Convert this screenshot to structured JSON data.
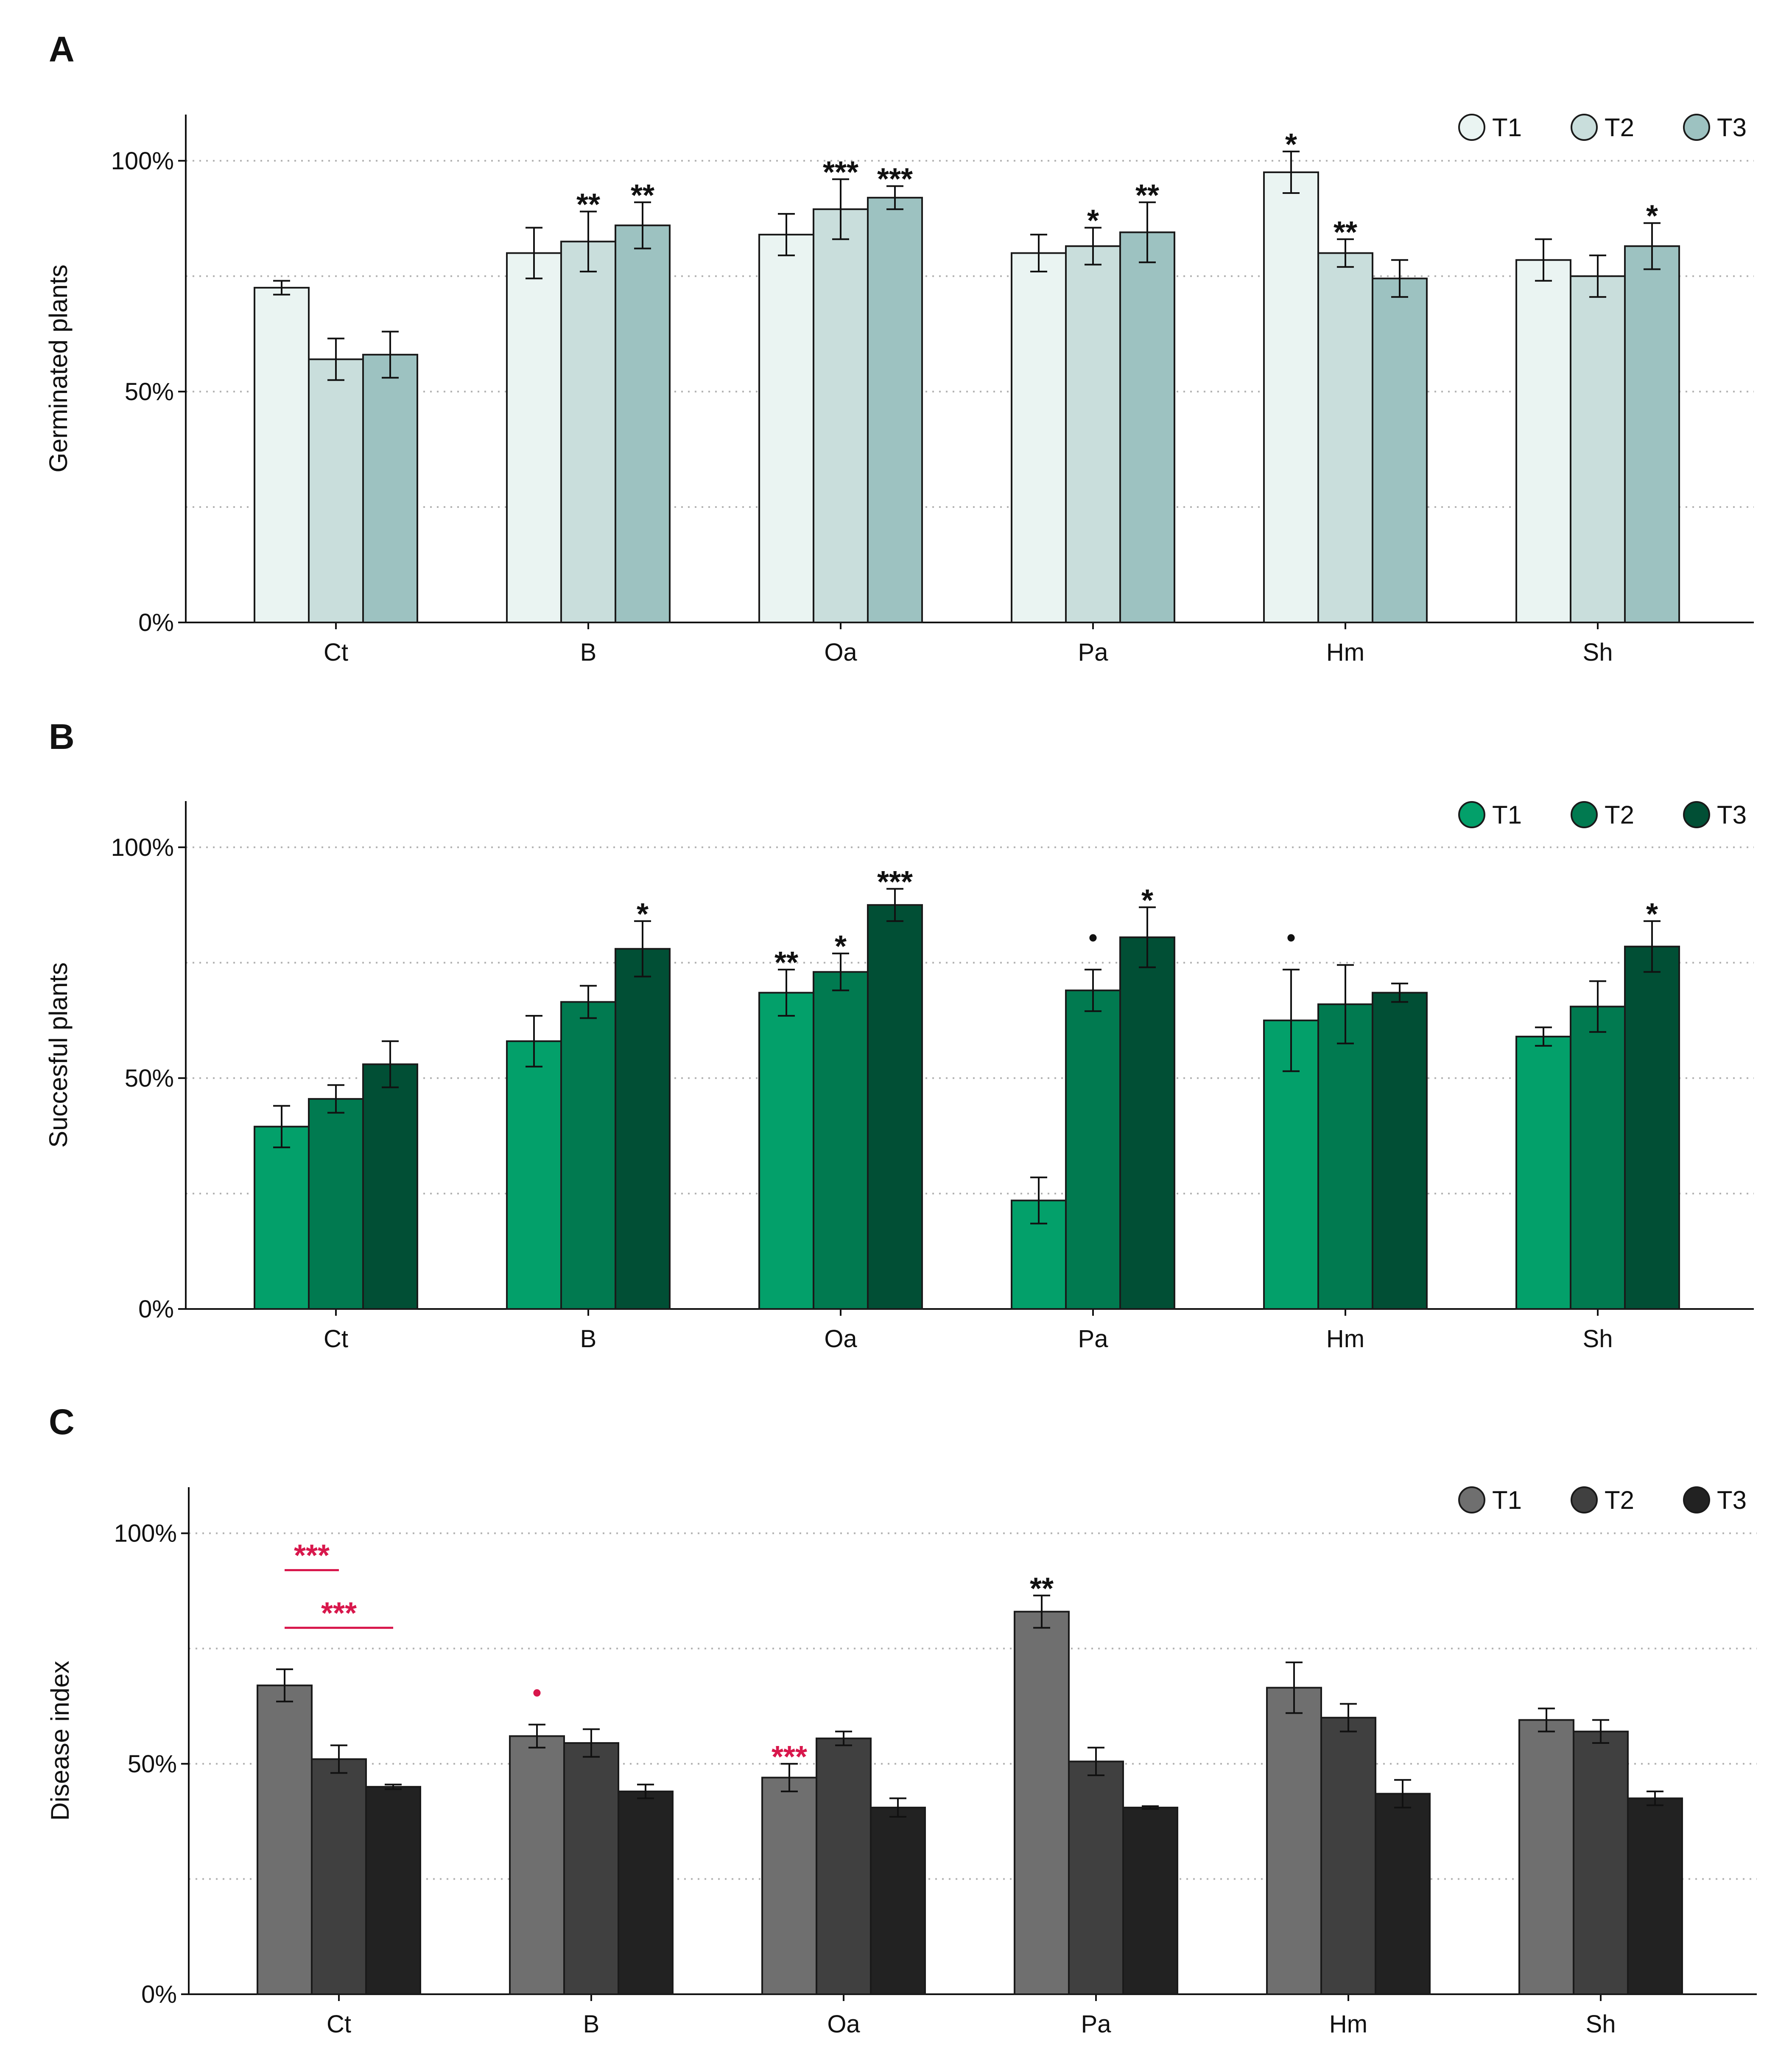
{
  "chart_data": [
    {
      "type": "bar",
      "panel": "A",
      "ylabel": "Germinated plants",
      "ylim": [
        0,
        110
      ],
      "yticks": [
        "0%",
        "50%",
        "100%"
      ],
      "categories": [
        "Ct",
        "B",
        "Oa",
        "Pa",
        "Hm",
        "Sh"
      ],
      "legend_position": "top-right",
      "series": [
        {
          "name": "T1",
          "color": "#eaf4f2",
          "values": [
            72.5,
            80,
            84,
            80,
            97.5,
            78.5
          ],
          "errors": [
            1.5,
            5.5,
            4.5,
            4,
            4.5,
            4.5
          ]
        },
        {
          "name": "T2",
          "color": "#c9dedc",
          "values": [
            57,
            82.5,
            89.5,
            81.5,
            80,
            75
          ],
          "errors": [
            4.5,
            6.5,
            6.5,
            4,
            3,
            4.5
          ]
        },
        {
          "name": "T3",
          "color": "#9dc2c1",
          "values": [
            58,
            86,
            92,
            84.5,
            74.5,
            81.5
          ],
          "errors": [
            5,
            5,
            2.5,
            6.5,
            4,
            5
          ]
        }
      ],
      "annotations": [
        {
          "category": 1,
          "series": 1,
          "text": "**",
          "color": "#111111"
        },
        {
          "category": 1,
          "series": 2,
          "text": "**",
          "color": "#111111"
        },
        {
          "category": 2,
          "series": 1,
          "text": "***",
          "color": "#111111"
        },
        {
          "category": 2,
          "series": 2,
          "text": "***",
          "color": "#111111"
        },
        {
          "category": 3,
          "series": 1,
          "text": "*",
          "color": "#111111"
        },
        {
          "category": 3,
          "series": 2,
          "text": "**",
          "color": "#111111"
        },
        {
          "category": 4,
          "series": 0,
          "text": "*",
          "color": "#111111"
        },
        {
          "category": 4,
          "series": 1,
          "text": "**",
          "color": "#111111"
        },
        {
          "category": 5,
          "series": 2,
          "text": "*",
          "color": "#111111"
        }
      ],
      "brackets": []
    },
    {
      "type": "bar",
      "panel": "B",
      "ylabel": "Succesful plants",
      "ylim": [
        0,
        110
      ],
      "yticks": [
        "0%",
        "50%",
        "100%"
      ],
      "categories": [
        "Ct",
        "B",
        "Oa",
        "Pa",
        "Hm",
        "Sh"
      ],
      "legend_position": "top-right",
      "series": [
        {
          "name": "T1",
          "color": "#03a06a",
          "values": [
            39.5,
            58,
            68.5,
            23.5,
            62.5,
            59
          ],
          "errors": [
            4.5,
            5.5,
            5,
            5,
            11,
            2
          ]
        },
        {
          "name": "T2",
          "color": "#017a50",
          "values": [
            45.5,
            66.5,
            73,
            69,
            66,
            65.5
          ],
          "errors": [
            3,
            3.5,
            4,
            4.5,
            8.5,
            5.5
          ]
        },
        {
          "name": "T3",
          "color": "#014f35",
          "values": [
            53,
            78,
            87.5,
            80.5,
            68.5,
            78.5
          ],
          "errors": [
            5,
            6,
            3.5,
            6.5,
            2,
            5.5
          ]
        }
      ],
      "annotations": [
        {
          "category": 1,
          "series": 2,
          "text": "*",
          "color": "#111111"
        },
        {
          "category": 2,
          "series": 0,
          "text": "**",
          "color": "#111111"
        },
        {
          "category": 2,
          "series": 1,
          "text": "*",
          "color": "#111111"
        },
        {
          "category": 2,
          "series": 2,
          "text": "***",
          "color": "#111111"
        },
        {
          "category": 3,
          "series": 1,
          "text": "•",
          "color": "#111111"
        },
        {
          "category": 3,
          "series": 2,
          "text": "*",
          "color": "#111111"
        },
        {
          "category": 4,
          "series": 0,
          "text": "•",
          "color": "#111111"
        },
        {
          "category": 5,
          "series": 2,
          "text": "*",
          "color": "#111111"
        }
      ],
      "brackets": []
    },
    {
      "type": "bar",
      "panel": "C",
      "ylabel": "Disease index",
      "ylim": [
        0,
        110
      ],
      "yticks": [
        "0%",
        "50%",
        "100%"
      ],
      "categories": [
        "Ct",
        "B",
        "Oa",
        "Pa",
        "Hm",
        "Sh"
      ],
      "legend_position": "top-right",
      "series": [
        {
          "name": "T1",
          "color": "#6f6f6f",
          "values": [
            67,
            56,
            47,
            83,
            66.5,
            59.5
          ],
          "errors": [
            3.5,
            2.5,
            3,
            3.5,
            5.5,
            2.5
          ]
        },
        {
          "name": "T2",
          "color": "#404040",
          "values": [
            51,
            54.5,
            55.5,
            50.5,
            60,
            57
          ],
          "errors": [
            3,
            3,
            1.5,
            3,
            3,
            2.5
          ]
        },
        {
          "name": "T3",
          "color": "#222222",
          "values": [
            45,
            44,
            40.5,
            40.5,
            43.5,
            42.5
          ],
          "errors": [
            0.5,
            1.5,
            2,
            0.3,
            3,
            1.5
          ]
        }
      ],
      "annotations": [
        {
          "category": 1,
          "series": 0,
          "text": "•",
          "color": "#d8174c"
        },
        {
          "category": 2,
          "series": 0,
          "text": "***",
          "color": "#d8174c"
        },
        {
          "category": 3,
          "series": 0,
          "text": "**",
          "color": "#111111"
        }
      ],
      "brackets": [
        {
          "category": 0,
          "from_series": 0,
          "to_series": 1,
          "level": 92,
          "text": "***",
          "color": "#d8174c"
        },
        {
          "category": 0,
          "from_series": 0,
          "to_series": 2,
          "level": 79.5,
          "text": "***",
          "color": "#d8174c"
        }
      ]
    }
  ]
}
